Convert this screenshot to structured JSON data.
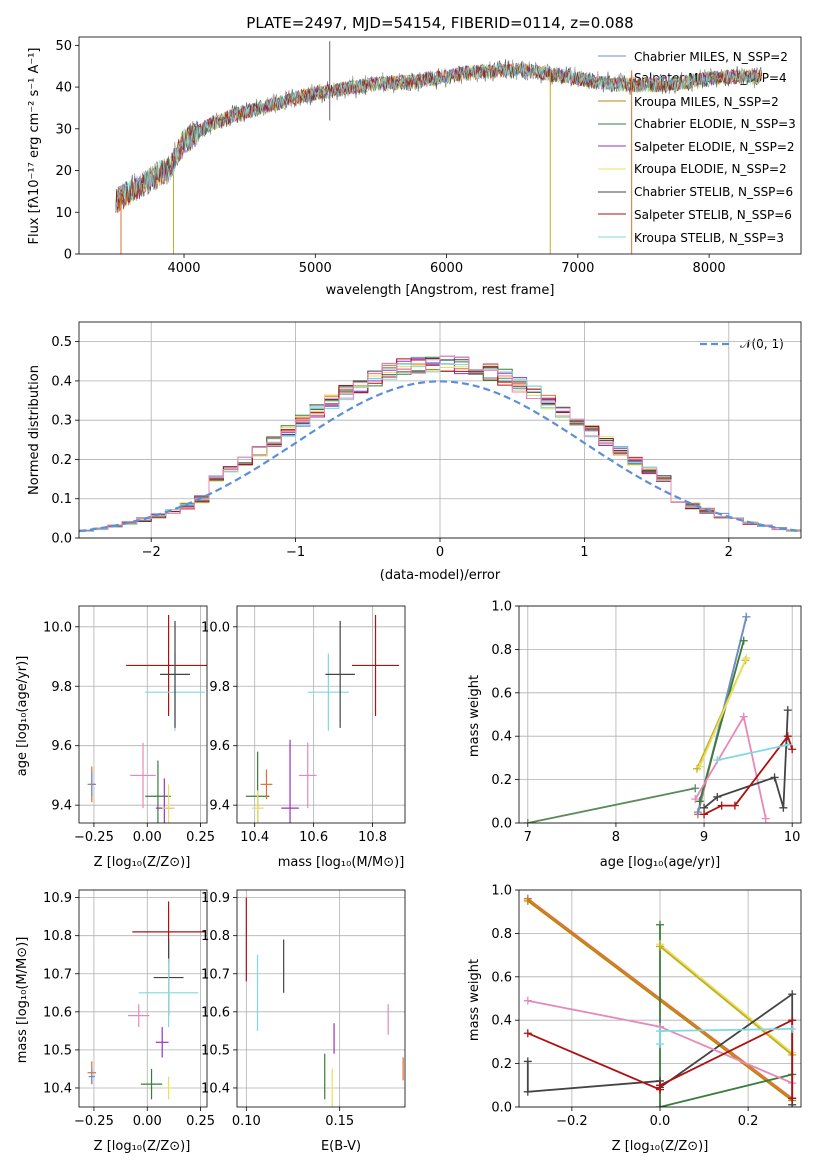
{
  "chart_data": [
    {
      "id": "spectrum",
      "type": "line",
      "title": "PLATE=2497, MJD=54154, FIBERID=0114, z=0.088",
      "xlabel": "wavelength [Angstrom, rest frame]",
      "ylabel": "Flux [fλ10⁻¹⁷ erg cm⁻² s⁻¹ A⁻¹]",
      "xlim": [
        3200,
        8700
      ],
      "ylim": [
        0,
        52
      ],
      "xticks": [
        4000,
        5000,
        6000,
        7000,
        8000
      ],
      "yticks": [
        0,
        10,
        20,
        30,
        40,
        50
      ],
      "grid": false,
      "legend_position": "right",
      "continuum": {
        "x": [
          3500,
          3600,
          3700,
          3800,
          3900,
          4000,
          4100,
          4200,
          4400,
          4600,
          4800,
          5000,
          5200,
          5400,
          5600,
          5800,
          6000,
          6200,
          6400,
          6600,
          6800,
          7000,
          7200,
          7400,
          7600,
          7800,
          8000,
          8200,
          8400
        ],
        "y": [
          13,
          15,
          17,
          19,
          21,
          27,
          29,
          31,
          33.5,
          35,
          37,
          38.5,
          39.5,
          40.5,
          41,
          41.5,
          42.5,
          43.5,
          44,
          44,
          43,
          42,
          41,
          40.5,
          40.5,
          41,
          42,
          42.5,
          42.5
        ]
      },
      "series": [
        {
          "name": "Chabrier MILES, N_SSP=2",
          "color": "#6a8fd0"
        },
        {
          "name": "Salpeter MILES, N_SSP=4",
          "color": "#7a7a7a"
        },
        {
          "name": "Kroupa MILES, N_SSP=2",
          "color": "#b8860b"
        },
        {
          "name": "Chabrier ELODIE, N_SSP=3",
          "color": "#3a7d3a"
        },
        {
          "name": "Salpeter ELODIE, N_SSP=2",
          "color": "#9b30c0"
        },
        {
          "name": "Kroupa ELODIE, N_SSP=2",
          "color": "#e8e060"
        },
        {
          "name": "Chabrier STELIB, N_SSP=6",
          "color": "#444444"
        },
        {
          "name": "Salpeter STELIB, N_SSP=6",
          "color": "#b01010"
        },
        {
          "name": "Kroupa STELIB, N_SSP=3",
          "color": "#80d8e0"
        }
      ],
      "spikes": [
        {
          "x": 3520,
          "y0": 0,
          "y1": 14,
          "color": "#e07030"
        },
        {
          "x": 3920,
          "y0": 0,
          "y1": 19,
          "color": "#c0b020"
        },
        {
          "x": 5110,
          "y0": 32,
          "y1": 51,
          "color": "#666666"
        },
        {
          "x": 6790,
          "y0": 0,
          "y1": 44,
          "color": "#c0b020"
        },
        {
          "x": 7410,
          "y0": 0,
          "y1": 44,
          "color": "#e07030"
        }
      ]
    },
    {
      "id": "residuals",
      "type": "bar",
      "xlabel": "(data-model)/error",
      "ylabel": "Normed distribution",
      "xlim": [
        -2.5,
        2.5
      ],
      "ylim": [
        0,
        0.55
      ],
      "xticks": [
        -2,
        -1,
        0,
        1,
        2
      ],
      "yticks": [
        0.0,
        0.1,
        0.2,
        0.3,
        0.4,
        0.5
      ],
      "grid": true,
      "legend": "𝒩(0, 1)",
      "legend_position": "top-right",
      "reference_curve": {
        "name": "N(0,1)",
        "mean": 0,
        "sigma": 1,
        "color": "#5b8fd8"
      },
      "histogram_colors": [
        "#6a8fd0",
        "#e07030",
        "#3a7d3a",
        "#9b30c0",
        "#e8e060",
        "#444444",
        "#b01010",
        "#80d8e0",
        "#e888b8"
      ]
    },
    {
      "id": "age_vs_Z",
      "type": "scatter",
      "xlabel": "Z [log₁₀(Z/Z⊙)]",
      "ylabel": "age  [log₁₀(age/yr)]",
      "xlim": [
        -0.32,
        0.28
      ],
      "ylim": [
        9.34,
        10.07
      ],
      "xticks": [
        -0.25,
        0.0,
        0.25
      ],
      "xticklabels": [
        "−0.25",
        "0.00",
        "0.25"
      ],
      "yticks": [
        9.4,
        9.6,
        9.8,
        10.0
      ],
      "grid": true,
      "points": [
        {
          "x": -0.26,
          "y": 9.47,
          "xerr": 0.02,
          "yerr": 0.06,
          "color": "#e07030"
        },
        {
          "x": -0.26,
          "y": 9.47,
          "xerr": 0.015,
          "yerr": 0.04,
          "color": "#6a8fd0"
        },
        {
          "x": -0.02,
          "y": 9.5,
          "xerr": 0.06,
          "yerr": 0.11,
          "color": "#e888b8"
        },
        {
          "x": 0.05,
          "y": 9.43,
          "xerr": 0.06,
          "yerr": 0.12,
          "color": "#3a7d3a"
        },
        {
          "x": 0.08,
          "y": 9.39,
          "xerr": 0.04,
          "yerr": 0.1,
          "color": "#9b30c0"
        },
        {
          "x": 0.1,
          "y": 9.39,
          "xerr": 0.03,
          "yerr": 0.08,
          "color": "#e8e060"
        },
        {
          "x": 0.1,
          "y": 9.87,
          "xerr": 0.2,
          "yerr": 0.17,
          "color": "#b01010"
        },
        {
          "x": 0.13,
          "y": 9.78,
          "xerr": 0.14,
          "yerr": 0.13,
          "color": "#80d8e0"
        },
        {
          "x": 0.13,
          "y": 9.84,
          "xerr": 0.07,
          "yerr": 0.18,
          "color": "#444444"
        }
      ]
    },
    {
      "id": "age_vs_mass",
      "type": "scatter",
      "xlabel": "mass [log₁₀(M/M⊙)]",
      "xlim": [
        10.34,
        10.91
      ],
      "ylim": [
        9.34,
        10.07
      ],
      "xticks": [
        10.4,
        10.6,
        10.8
      ],
      "yticks": [
        9.4,
        9.6,
        9.8,
        10.0
      ],
      "grid": true,
      "points": [
        {
          "x": 10.41,
          "y": 9.43,
          "xerr": 0.04,
          "yerr": 0.15,
          "color": "#3a7d3a"
        },
        {
          "x": 10.41,
          "y": 9.39,
          "xerr": 0.02,
          "yerr": 0.06,
          "color": "#e8e060"
        },
        {
          "x": 10.44,
          "y": 9.47,
          "xerr": 0.02,
          "yerr": 0.05,
          "color": "#e07030"
        },
        {
          "x": 10.52,
          "y": 9.39,
          "xerr": 0.03,
          "yerr": 0.23,
          "color": "#9b30c0"
        },
        {
          "x": 10.58,
          "y": 9.5,
          "xerr": 0.03,
          "yerr": 0.11,
          "color": "#e888b8"
        },
        {
          "x": 10.65,
          "y": 9.78,
          "xerr": 0.07,
          "yerr": 0.13,
          "color": "#80d8e0"
        },
        {
          "x": 10.69,
          "y": 9.84,
          "xerr": 0.05,
          "yerr": 0.18,
          "color": "#444444"
        },
        {
          "x": 10.81,
          "y": 9.87,
          "xerr": 0.08,
          "yerr": 0.17,
          "color": "#b01010"
        }
      ]
    },
    {
      "id": "mass_weight_vs_age",
      "type": "line",
      "xlabel": "age  [log₁₀(age/yr)]",
      "ylabel": "mass weight",
      "xlim": [
        6.9,
        10.1
      ],
      "ylim": [
        0,
        1.0
      ],
      "xticks": [
        7,
        8,
        9,
        10
      ],
      "yticks": [
        0.0,
        0.2,
        0.4,
        0.6,
        0.8,
        1.0
      ],
      "grid": true,
      "series": [
        {
          "color": "#e07030",
          "x": [
            8.93,
            9.48
          ],
          "y": [
            0.04,
            0.95
          ]
        },
        {
          "color": "#6a8fd0",
          "x": [
            8.93,
            9.48
          ],
          "y": [
            0.05,
            0.95
          ]
        },
        {
          "color": "#3a7d3a",
          "x": [
            8.95,
            9.45
          ],
          "y": [
            0.1,
            0.84
          ]
        },
        {
          "color": "#5a8a5a",
          "x": [
            7.0,
            8.9
          ],
          "y": [
            0.0,
            0.16
          ]
        },
        {
          "color": "#c0b020",
          "x": [
            8.92,
            9.47
          ],
          "y": [
            0.25,
            0.75
          ]
        },
        {
          "color": "#e8e060",
          "x": [
            8.95,
            9.48
          ],
          "y": [
            0.26,
            0.76
          ]
        },
        {
          "color": "#e888b8",
          "x": [
            8.9,
            9.45,
            9.7
          ],
          "y": [
            0.11,
            0.49,
            0.02
          ]
        },
        {
          "color": "#444444",
          "x": [
            9.0,
            9.15,
            9.8,
            9.9,
            9.95
          ],
          "y": [
            0.07,
            0.12,
            0.21,
            0.07,
            0.52
          ]
        },
        {
          "color": "#b01010",
          "x": [
            9.0,
            9.2,
            9.35,
            9.95,
            10.0
          ],
          "y": [
            0.04,
            0.08,
            0.08,
            0.4,
            0.34
          ]
        },
        {
          "color": "#80d8e0",
          "x": [
            9.15,
            9.95
          ],
          "y": [
            0.29,
            0.36
          ]
        }
      ]
    },
    {
      "id": "mass_vs_Z",
      "type": "scatter",
      "xlabel": "Z [log₁₀(Z/Z⊙)]",
      "ylabel": "mass [log₁₀(M/M⊙)]",
      "xlim": [
        -0.32,
        0.28
      ],
      "ylim": [
        10.35,
        10.92
      ],
      "xticks": [
        -0.25,
        0.0,
        0.25
      ],
      "xticklabels": [
        "−0.25",
        "0.00",
        "0.25"
      ],
      "yticks": [
        10.4,
        10.5,
        10.6,
        10.7,
        10.8,
        10.9
      ],
      "grid": true,
      "points": [
        {
          "x": -0.26,
          "y": 10.44,
          "xerr": 0.02,
          "yerr": 0.03,
          "color": "#e07030"
        },
        {
          "x": -0.26,
          "y": 10.43,
          "xerr": 0.015,
          "yerr": 0.02,
          "color": "#6a8fd0"
        },
        {
          "x": -0.04,
          "y": 10.59,
          "xerr": 0.05,
          "yerr": 0.03,
          "color": "#e888b8"
        },
        {
          "x": 0.02,
          "y": 10.41,
          "xerr": 0.05,
          "yerr": 0.04,
          "color": "#3a7d3a"
        },
        {
          "x": 0.07,
          "y": 10.52,
          "xerr": 0.03,
          "yerr": 0.04,
          "color": "#9b30c0"
        },
        {
          "x": 0.1,
          "y": 10.4,
          "xerr": 0.02,
          "yerr": 0.03,
          "color": "#e8e060"
        },
        {
          "x": 0.1,
          "y": 10.81,
          "xerr": 0.17,
          "yerr": 0.08,
          "color": "#b01010"
        },
        {
          "x": 0.1,
          "y": 10.69,
          "xerr": 0.07,
          "yerr": 0.1,
          "color": "#444444"
        },
        {
          "x": 0.1,
          "y": 10.65,
          "xerr": 0.14,
          "yerr": 0.09,
          "color": "#80d8e0"
        }
      ]
    },
    {
      "id": "mass_vs_ebv",
      "type": "scatter",
      "xlabel": "E(B-V)",
      "xlim": [
        0.095,
        0.185
      ],
      "ylim": [
        10.35,
        10.92
      ],
      "xticks": [
        0.1,
        0.15
      ],
      "xticklabels": [
        "0.10",
        "0.15"
      ],
      "yticks": [
        10.4,
        10.5,
        10.6,
        10.7,
        10.8,
        10.9
      ],
      "grid": true,
      "points": [
        {
          "x": 0.1,
          "y": 10.79,
          "yerr": 0.11,
          "color": "#b01010"
        },
        {
          "x": 0.106,
          "y": 10.65,
          "yerr": 0.1,
          "color": "#80d8e0"
        },
        {
          "x": 0.12,
          "y": 10.72,
          "yerr": 0.07,
          "color": "#444444"
        },
        {
          "x": 0.142,
          "y": 10.43,
          "yerr": 0.06,
          "color": "#3a7d3a"
        },
        {
          "x": 0.146,
          "y": 10.4,
          "yerr": 0.05,
          "color": "#e8e060"
        },
        {
          "x": 0.147,
          "y": 10.53,
          "yerr": 0.04,
          "color": "#9b30c0"
        },
        {
          "x": 0.176,
          "y": 10.58,
          "yerr": 0.04,
          "color": "#e888b8"
        },
        {
          "x": 0.184,
          "y": 10.45,
          "yerr": 0.03,
          "color": "#e07030"
        }
      ]
    },
    {
      "id": "mass_weight_vs_Z",
      "type": "line",
      "xlabel": "Z [log₁₀(Z/Z⊙)]",
      "ylabel": "mass weight",
      "xlim": [
        -0.32,
        0.32
      ],
      "ylim": [
        0,
        1.0
      ],
      "xticks": [
        -0.2,
        0.0,
        0.2
      ],
      "xticklabels": [
        "−0.2",
        "0.0",
        "0.2"
      ],
      "yticks": [
        0.0,
        0.2,
        0.4,
        0.6,
        0.8,
        1.0
      ],
      "grid": true,
      "series": [
        {
          "color": "#e07030",
          "x": [
            -0.3,
            0.3
          ],
          "y": [
            0.96,
            0.04
          ]
        },
        {
          "color": "#b8860b",
          "x": [
            -0.3,
            0.3
          ],
          "y": [
            0.95,
            0.03
          ]
        },
        {
          "color": "#3a7d3a",
          "x": [
            0.0,
            0.0,
            0.3
          ],
          "y": [
            0.84,
            0.0,
            0.15
          ]
        },
        {
          "color": "#e8e060",
          "x": [
            0.0,
            0.3
          ],
          "y": [
            0.75,
            0.25
          ]
        },
        {
          "color": "#c0b020",
          "x": [
            0.0,
            0.3
          ],
          "y": [
            0.74,
            0.24
          ]
        },
        {
          "color": "#444444",
          "x": [
            -0.3,
            -0.3,
            0.0,
            0.0,
            0.3,
            0.3
          ],
          "y": [
            0.21,
            0.07,
            0.12,
            0.09,
            0.52,
            0.01
          ]
        },
        {
          "color": "#e888b8",
          "x": [
            -0.3,
            0.0,
            0.3
          ],
          "y": [
            0.49,
            0.37,
            0.11
          ]
        },
        {
          "color": "#b01010",
          "x": [
            -0.3,
            0.0,
            0.0,
            0.3,
            0.3
          ],
          "y": [
            0.34,
            0.08,
            0.1,
            0.4,
            0.04
          ]
        },
        {
          "color": "#80d8e0",
          "x": [
            0.0,
            0.0,
            0.3
          ],
          "y": [
            0.29,
            0.35,
            0.36
          ]
        }
      ]
    }
  ]
}
